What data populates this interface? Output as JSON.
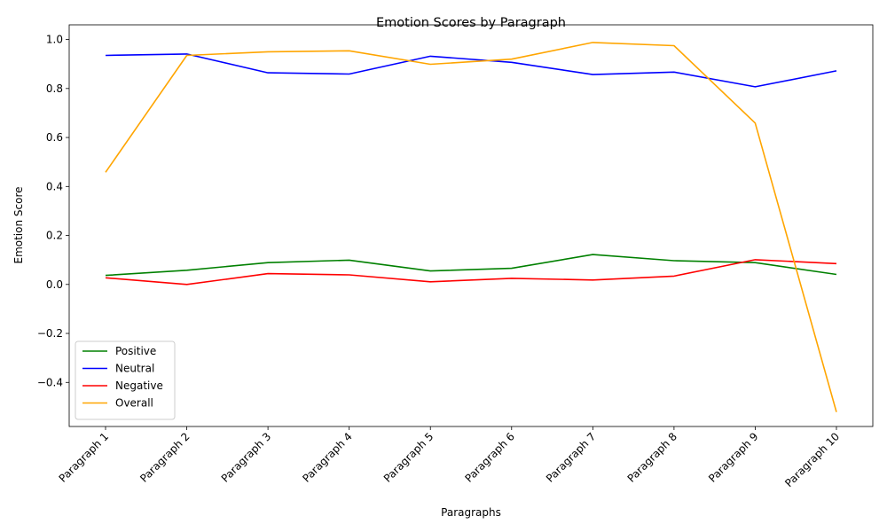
{
  "chart_data": {
    "type": "line",
    "title": "Emotion Scores by Paragraph",
    "xlabel": "Paragraphs",
    "ylabel": "Emotion Score",
    "categories": [
      "Paragraph 1",
      "Paragraph 2",
      "Paragraph 3",
      "Paragraph 4",
      "Paragraph 5",
      "Paragraph 6",
      "Paragraph 7",
      "Paragraph 8",
      "Paragraph 9",
      "Paragraph 10"
    ],
    "ylim": [
      -0.58,
      1.06
    ],
    "yticks": [
      -0.4,
      -0.2,
      0.0,
      0.2,
      0.4,
      0.6,
      0.8,
      1.0
    ],
    "ytick_labels": [
      "−0.4",
      "−0.2",
      "0.0",
      "0.2",
      "0.4",
      "0.6",
      "0.8",
      "1.0"
    ],
    "grid": false,
    "legend_position": "lower-left",
    "series": [
      {
        "name": "Positive",
        "color": "#008000",
        "values": [
          0.037,
          0.058,
          0.089,
          0.099,
          0.055,
          0.066,
          0.122,
          0.097,
          0.089,
          0.041
        ]
      },
      {
        "name": "Neutral",
        "color": "#0000ff",
        "values": [
          0.935,
          0.941,
          0.864,
          0.859,
          0.932,
          0.907,
          0.857,
          0.867,
          0.807,
          0.872
        ]
      },
      {
        "name": "Negative",
        "color": "#ff0000",
        "values": [
          0.027,
          0.0,
          0.044,
          0.039,
          0.011,
          0.025,
          0.018,
          0.034,
          0.101,
          0.085
        ]
      },
      {
        "name": "Overall",
        "color": "#ffa500",
        "values": [
          0.458,
          0.935,
          0.95,
          0.954,
          0.899,
          0.92,
          0.988,
          0.975,
          0.659,
          -0.521
        ]
      }
    ]
  }
}
